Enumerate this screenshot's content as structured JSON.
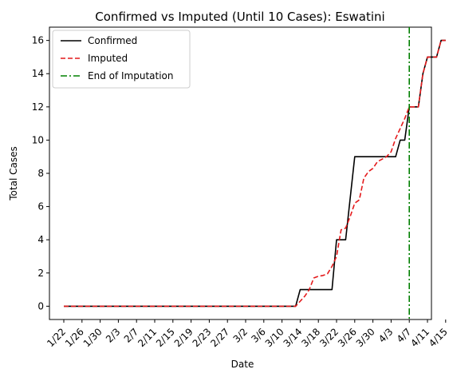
{
  "chart_data": {
    "type": "line",
    "title": "Confirmed vs Imputed (Until 10 Cases): Eswatini",
    "xlabel": "Date",
    "ylabel": "Total Cases",
    "x_tick_labels": [
      "1/22",
      "1/26",
      "1/30",
      "2/3",
      "2/7",
      "2/11",
      "2/15",
      "2/19",
      "2/23",
      "2/27",
      "3/2",
      "3/6",
      "3/10",
      "3/14",
      "3/18",
      "3/22",
      "3/26",
      "3/30",
      "4/3",
      "4/7",
      "4/11",
      "4/15"
    ],
    "y_ticks": [
      0,
      2,
      4,
      6,
      8,
      10,
      12,
      14,
      16
    ],
    "ylim": [
      -0.8,
      16.8
    ],
    "grid": false,
    "legend_position": "top-left",
    "series": [
      {
        "name": "Confirmed",
        "color": "#000000",
        "style": "solid",
        "points": [
          [
            "1/22",
            0
          ],
          [
            "3/13",
            0
          ],
          [
            "3/14",
            1
          ],
          [
            "3/21",
            1
          ],
          [
            "3/22",
            4
          ],
          [
            "3/24",
            4
          ],
          [
            "3/26",
            9
          ],
          [
            "4/4",
            9
          ],
          [
            "4/5",
            10
          ],
          [
            "4/6",
            10
          ],
          [
            "4/7",
            12
          ],
          [
            "4/9",
            12
          ],
          [
            "4/10",
            14
          ],
          [
            "4/11",
            15
          ],
          [
            "4/13",
            15
          ],
          [
            "4/14",
            16
          ],
          [
            "4/15",
            16
          ]
        ]
      },
      {
        "name": "Imputed",
        "color": "#e41a1c",
        "style": "dashed",
        "points": [
          [
            "1/22",
            0
          ],
          [
            "3/13",
            0
          ],
          [
            "3/14",
            0.3
          ],
          [
            "3/15",
            0.6
          ],
          [
            "3/16",
            1.0
          ],
          [
            "3/17",
            1.7
          ],
          [
            "3/18",
            1.8
          ],
          [
            "3/19",
            1.85
          ],
          [
            "3/20",
            1.95
          ],
          [
            "3/21",
            2.4
          ],
          [
            "3/22",
            3.0
          ],
          [
            "3/23",
            4.6
          ],
          [
            "3/24",
            4.7
          ],
          [
            "3/25",
            5.4
          ],
          [
            "3/26",
            6.2
          ],
          [
            "3/27",
            6.4
          ],
          [
            "3/28",
            7.7
          ],
          [
            "3/29",
            8.1
          ],
          [
            "3/30",
            8.3
          ],
          [
            "3/31",
            8.7
          ],
          [
            "4/1",
            8.85
          ],
          [
            "4/2",
            9.0
          ],
          [
            "4/3",
            9.3
          ],
          [
            "4/4",
            10.1
          ],
          [
            "4/5",
            10.7
          ],
          [
            "4/6",
            11.3
          ],
          [
            "4/7",
            12
          ],
          [
            "4/9",
            12
          ],
          [
            "4/10",
            14
          ],
          [
            "4/11",
            15
          ],
          [
            "4/13",
            15
          ],
          [
            "4/14",
            16
          ],
          [
            "4/15",
            16
          ]
        ]
      },
      {
        "name": "End of Imputation",
        "color": "#008000",
        "style": "dashdot",
        "vertical_line_x": "4/7"
      }
    ]
  }
}
